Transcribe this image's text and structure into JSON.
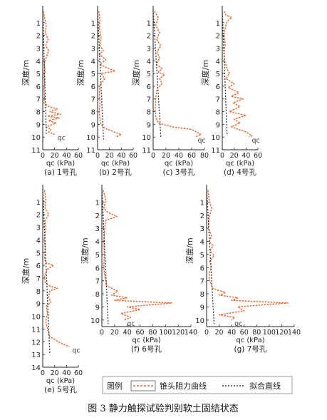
{
  "figure_caption": "图 3 静力触探试验判别软土固结状态",
  "legend": {
    "title": "图例",
    "items": [
      {
        "label": "锥头阻力曲线",
        "color": "#e8622a",
        "style": "dashed"
      },
      {
        "label": "拟合直线",
        "color": "#333333",
        "style": "dotted"
      }
    ]
  },
  "common": {
    "ylabel": "深度/m",
    "xlabel": "qc (kPa)",
    "series_label": "qc"
  },
  "chart_data": [
    {
      "type": "line",
      "caption": "(a) 1号孔",
      "xlim": [
        0,
        60
      ],
      "xticks": [
        0,
        20,
        40,
        60
      ],
      "ylim": [
        0,
        11
      ],
      "yticks": [
        1,
        2,
        3,
        4,
        5,
        6,
        7,
        8,
        9,
        10,
        11
      ],
      "series": [
        {
          "name": "qc",
          "points": [
            [
              1,
              0.1
            ],
            [
              3,
              0.6
            ],
            [
              6,
              1.2
            ],
            [
              4,
              1.8
            ],
            [
              9,
              2.3
            ],
            [
              5,
              2.8
            ],
            [
              10,
              3.2
            ],
            [
              6,
              3.7
            ],
            [
              3,
              4.2
            ],
            [
              4,
              4.8
            ],
            [
              2,
              5.2
            ],
            [
              3,
              5.8
            ],
            [
              2,
              6.3
            ],
            [
              3,
              6.9
            ],
            [
              2,
              7.3
            ],
            [
              10,
              7.6
            ],
            [
              25,
              7.8
            ],
            [
              12,
              8.0
            ],
            [
              30,
              8.2
            ],
            [
              8,
              8.35
            ],
            [
              28,
              8.5
            ],
            [
              10,
              8.7
            ],
            [
              22,
              8.9
            ],
            [
              6,
              9.2
            ],
            [
              14,
              9.4
            ],
            [
              10,
              9.6
            ],
            [
              20,
              9.8
            ]
          ]
        },
        {
          "name": "fit",
          "points": [
            [
              0,
              0
            ],
            [
              6,
              9.8
            ]
          ]
        }
      ],
      "annotation": "qc"
    },
    {
      "type": "line",
      "caption": "(b) 2号孔",
      "xlim": [
        0,
        60
      ],
      "xticks": [
        0,
        20,
        40,
        60
      ],
      "ylim": [
        0,
        11
      ],
      "yticks": [
        1,
        2,
        3,
        4,
        5,
        6,
        7,
        8,
        9,
        10,
        11
      ],
      "series": [
        {
          "name": "qc",
          "points": [
            [
              2,
              0.1
            ],
            [
              4,
              0.8
            ],
            [
              3,
              1.5
            ],
            [
              6,
              2.2
            ],
            [
              4,
              2.8
            ],
            [
              10,
              3.2
            ],
            [
              3,
              3.5
            ],
            [
              14,
              3.9
            ],
            [
              4,
              4.3
            ],
            [
              18,
              4.6
            ],
            [
              30,
              4.8
            ],
            [
              6,
              5.0
            ],
            [
              12,
              5.4
            ],
            [
              4,
              5.9
            ],
            [
              3,
              6.6
            ],
            [
              4,
              7.3
            ],
            [
              3,
              8.0
            ],
            [
              4,
              8.7
            ],
            [
              6,
              9.0
            ],
            [
              12,
              9.3
            ],
            [
              28,
              9.6
            ],
            [
              40,
              9.8
            ],
            [
              30,
              10.0
            ]
          ]
        },
        {
          "name": "fit",
          "points": [
            [
              0,
              0
            ],
            [
              10,
              10.2
            ]
          ]
        }
      ],
      "annotation": ""
    },
    {
      "type": "line",
      "caption": "(c) 3号孔",
      "xlim": [
        0,
        80
      ],
      "xticks": [
        0,
        20,
        40,
        60,
        80
      ],
      "ylim": [
        0,
        11
      ],
      "yticks": [
        1,
        2,
        3,
        4,
        5,
        6,
        7,
        8,
        9,
        10,
        11
      ],
      "series": [
        {
          "name": "qc",
          "points": [
            [
              2,
              0.1
            ],
            [
              8,
              0.6
            ],
            [
              4,
              1.2
            ],
            [
              10,
              1.8
            ],
            [
              5,
              2.3
            ],
            [
              12,
              2.8
            ],
            [
              6,
              3.3
            ],
            [
              10,
              3.8
            ],
            [
              5,
              4.3
            ],
            [
              14,
              4.6
            ],
            [
              8,
              4.9
            ],
            [
              18,
              5.1
            ],
            [
              10,
              5.4
            ],
            [
              14,
              5.8
            ],
            [
              6,
              6.2
            ],
            [
              4,
              7.0
            ],
            [
              3,
              7.8
            ],
            [
              4,
              8.4
            ],
            [
              8,
              8.9
            ],
            [
              30,
              9.2
            ],
            [
              60,
              9.4
            ],
            [
              75,
              9.8
            ],
            [
              65,
              10.0
            ]
          ]
        },
        {
          "name": "fit",
          "points": [
            [
              0,
              0
            ],
            [
              12,
              10.0
            ]
          ]
        }
      ],
      "annotation": "qc"
    },
    {
      "type": "line",
      "caption": "(d) 4号孔",
      "xlim": [
        0,
        60
      ],
      "xticks": [
        0,
        20,
        40,
        60
      ],
      "ylim": [
        0,
        11
      ],
      "yticks": [
        1,
        2,
        3,
        4,
        5,
        6,
        7,
        8,
        9,
        10,
        11
      ],
      "series": [
        {
          "name": "qc",
          "points": [
            [
              3,
              0.1
            ],
            [
              6,
              0.4
            ],
            [
              16,
              0.6
            ],
            [
              8,
              0.9
            ],
            [
              5,
              1.4
            ],
            [
              3,
              2.0
            ],
            [
              5,
              2.7
            ],
            [
              3,
              3.3
            ],
            [
              4,
              4.0
            ],
            [
              8,
              4.6
            ],
            [
              12,
              5.0
            ],
            [
              6,
              5.4
            ],
            [
              20,
              5.8
            ],
            [
              10,
              6.1
            ],
            [
              28,
              6.5
            ],
            [
              15,
              6.8
            ],
            [
              35,
              7.0
            ],
            [
              18,
              7.3
            ],
            [
              30,
              7.6
            ],
            [
              12,
              8.0
            ],
            [
              40,
              8.3
            ],
            [
              20,
              8.6
            ],
            [
              30,
              8.9
            ],
            [
              15,
              9.2
            ],
            [
              40,
              9.6
            ],
            [
              50,
              9.9
            ],
            [
              45,
              10.0
            ]
          ]
        },
        {
          "name": "fit",
          "points": [
            [
              0,
              0
            ],
            [
              8,
              9.8
            ]
          ]
        }
      ],
      "annotation": "qc"
    },
    {
      "type": "line",
      "caption": "(e) 5号孔",
      "xlim": [
        0,
        60
      ],
      "xticks": [
        0,
        20,
        40,
        60
      ],
      "ylim": [
        0,
        14
      ],
      "yticks": [
        1,
        2,
        3,
        4,
        5,
        6,
        7,
        8,
        9,
        10,
        11,
        12,
        13,
        14
      ],
      "series": [
        {
          "name": "qc",
          "points": [
            [
              3,
              0.1
            ],
            [
              5,
              0.8
            ],
            [
              4,
              1.5
            ],
            [
              10,
              2.0
            ],
            [
              4,
              2.5
            ],
            [
              5,
              3.2
            ],
            [
              3,
              4.0
            ],
            [
              4,
              4.8
            ],
            [
              3,
              5.5
            ],
            [
              6,
              5.8
            ],
            [
              18,
              6.0
            ],
            [
              8,
              6.3
            ],
            [
              3,
              6.8
            ],
            [
              4,
              7.3
            ],
            [
              10,
              7.6
            ],
            [
              25,
              7.8
            ],
            [
              12,
              8.0
            ],
            [
              10,
              8.5
            ],
            [
              14,
              8.9
            ],
            [
              6,
              9.2
            ],
            [
              8,
              9.8
            ],
            [
              5,
              10.4
            ],
            [
              8,
              11.0
            ],
            [
              12,
              11.6
            ],
            [
              30,
              12.1
            ],
            [
              45,
              12.4
            ]
          ]
        },
        {
          "name": "fit",
          "points": [
            [
              0,
              0
            ],
            [
              12,
              13.0
            ]
          ]
        }
      ],
      "annotation": "qc"
    },
    {
      "type": "line",
      "caption": "(f) 6号孔",
      "xlim": [
        0,
        140
      ],
      "xticks": [
        0,
        20,
        40,
        60,
        80,
        100,
        120,
        140
      ],
      "ylim": [
        0,
        10.5
      ],
      "yticks": [
        1,
        2,
        3,
        4,
        5,
        6,
        7,
        8,
        9,
        10
      ],
      "series": [
        {
          "name": "qc",
          "points": [
            [
              2,
              0.1
            ],
            [
              6,
              0.8
            ],
            [
              3,
              1.5
            ],
            [
              10,
              1.8
            ],
            [
              24,
              2.1
            ],
            [
              6,
              2.4
            ],
            [
              4,
              3.2
            ],
            [
              3,
              4.0
            ],
            [
              4,
              5.0
            ],
            [
              3,
              6.0
            ],
            [
              5,
              6.8
            ],
            [
              8,
              7.4
            ],
            [
              25,
              7.8
            ],
            [
              15,
              8.1
            ],
            [
              40,
              8.3
            ],
            [
              20,
              8.5
            ],
            [
              110,
              8.7
            ],
            [
              40,
              9.0
            ],
            [
              60,
              9.2
            ],
            [
              30,
              9.5
            ],
            [
              45,
              9.8
            ],
            [
              35,
              10.0
            ]
          ]
        },
        {
          "name": "fit",
          "points": [
            [
              0,
              0
            ],
            [
              10,
              10.3
            ]
          ]
        }
      ],
      "annotation": "qc"
    },
    {
      "type": "line",
      "caption": "(g) 7号孔",
      "xlim": [
        0,
        140
      ],
      "xticks": [
        0,
        20,
        40,
        60,
        80,
        100,
        120,
        140
      ],
      "ylim": [
        0,
        10.5
      ],
      "yticks": [
        1,
        2,
        3,
        4,
        5,
        6,
        7,
        8,
        9,
        10
      ],
      "series": [
        {
          "name": "qc",
          "points": [
            [
              2,
              0.1
            ],
            [
              4,
              0.8
            ],
            [
              8,
              1.5
            ],
            [
              4,
              2.2
            ],
            [
              3,
              3.0
            ],
            [
              8,
              3.6
            ],
            [
              4,
              4.0
            ],
            [
              10,
              4.3
            ],
            [
              6,
              4.7
            ],
            [
              12,
              5.1
            ],
            [
              5,
              5.5
            ],
            [
              8,
              6.0
            ],
            [
              4,
              6.4
            ],
            [
              5,
              7.0
            ],
            [
              10,
              7.6
            ],
            [
              30,
              7.9
            ],
            [
              20,
              8.1
            ],
            [
              50,
              8.3
            ],
            [
              40,
              8.5
            ],
            [
              130,
              8.7
            ],
            [
              50,
              9.0
            ],
            [
              60,
              9.3
            ],
            [
              20,
              9.6
            ],
            [
              45,
              9.8
            ],
            [
              40,
              10.0
            ]
          ]
        },
        {
          "name": "fit",
          "points": [
            [
              0,
              0
            ],
            [
              12,
              10.3
            ]
          ]
        }
      ],
      "annotation": "qc"
    }
  ]
}
